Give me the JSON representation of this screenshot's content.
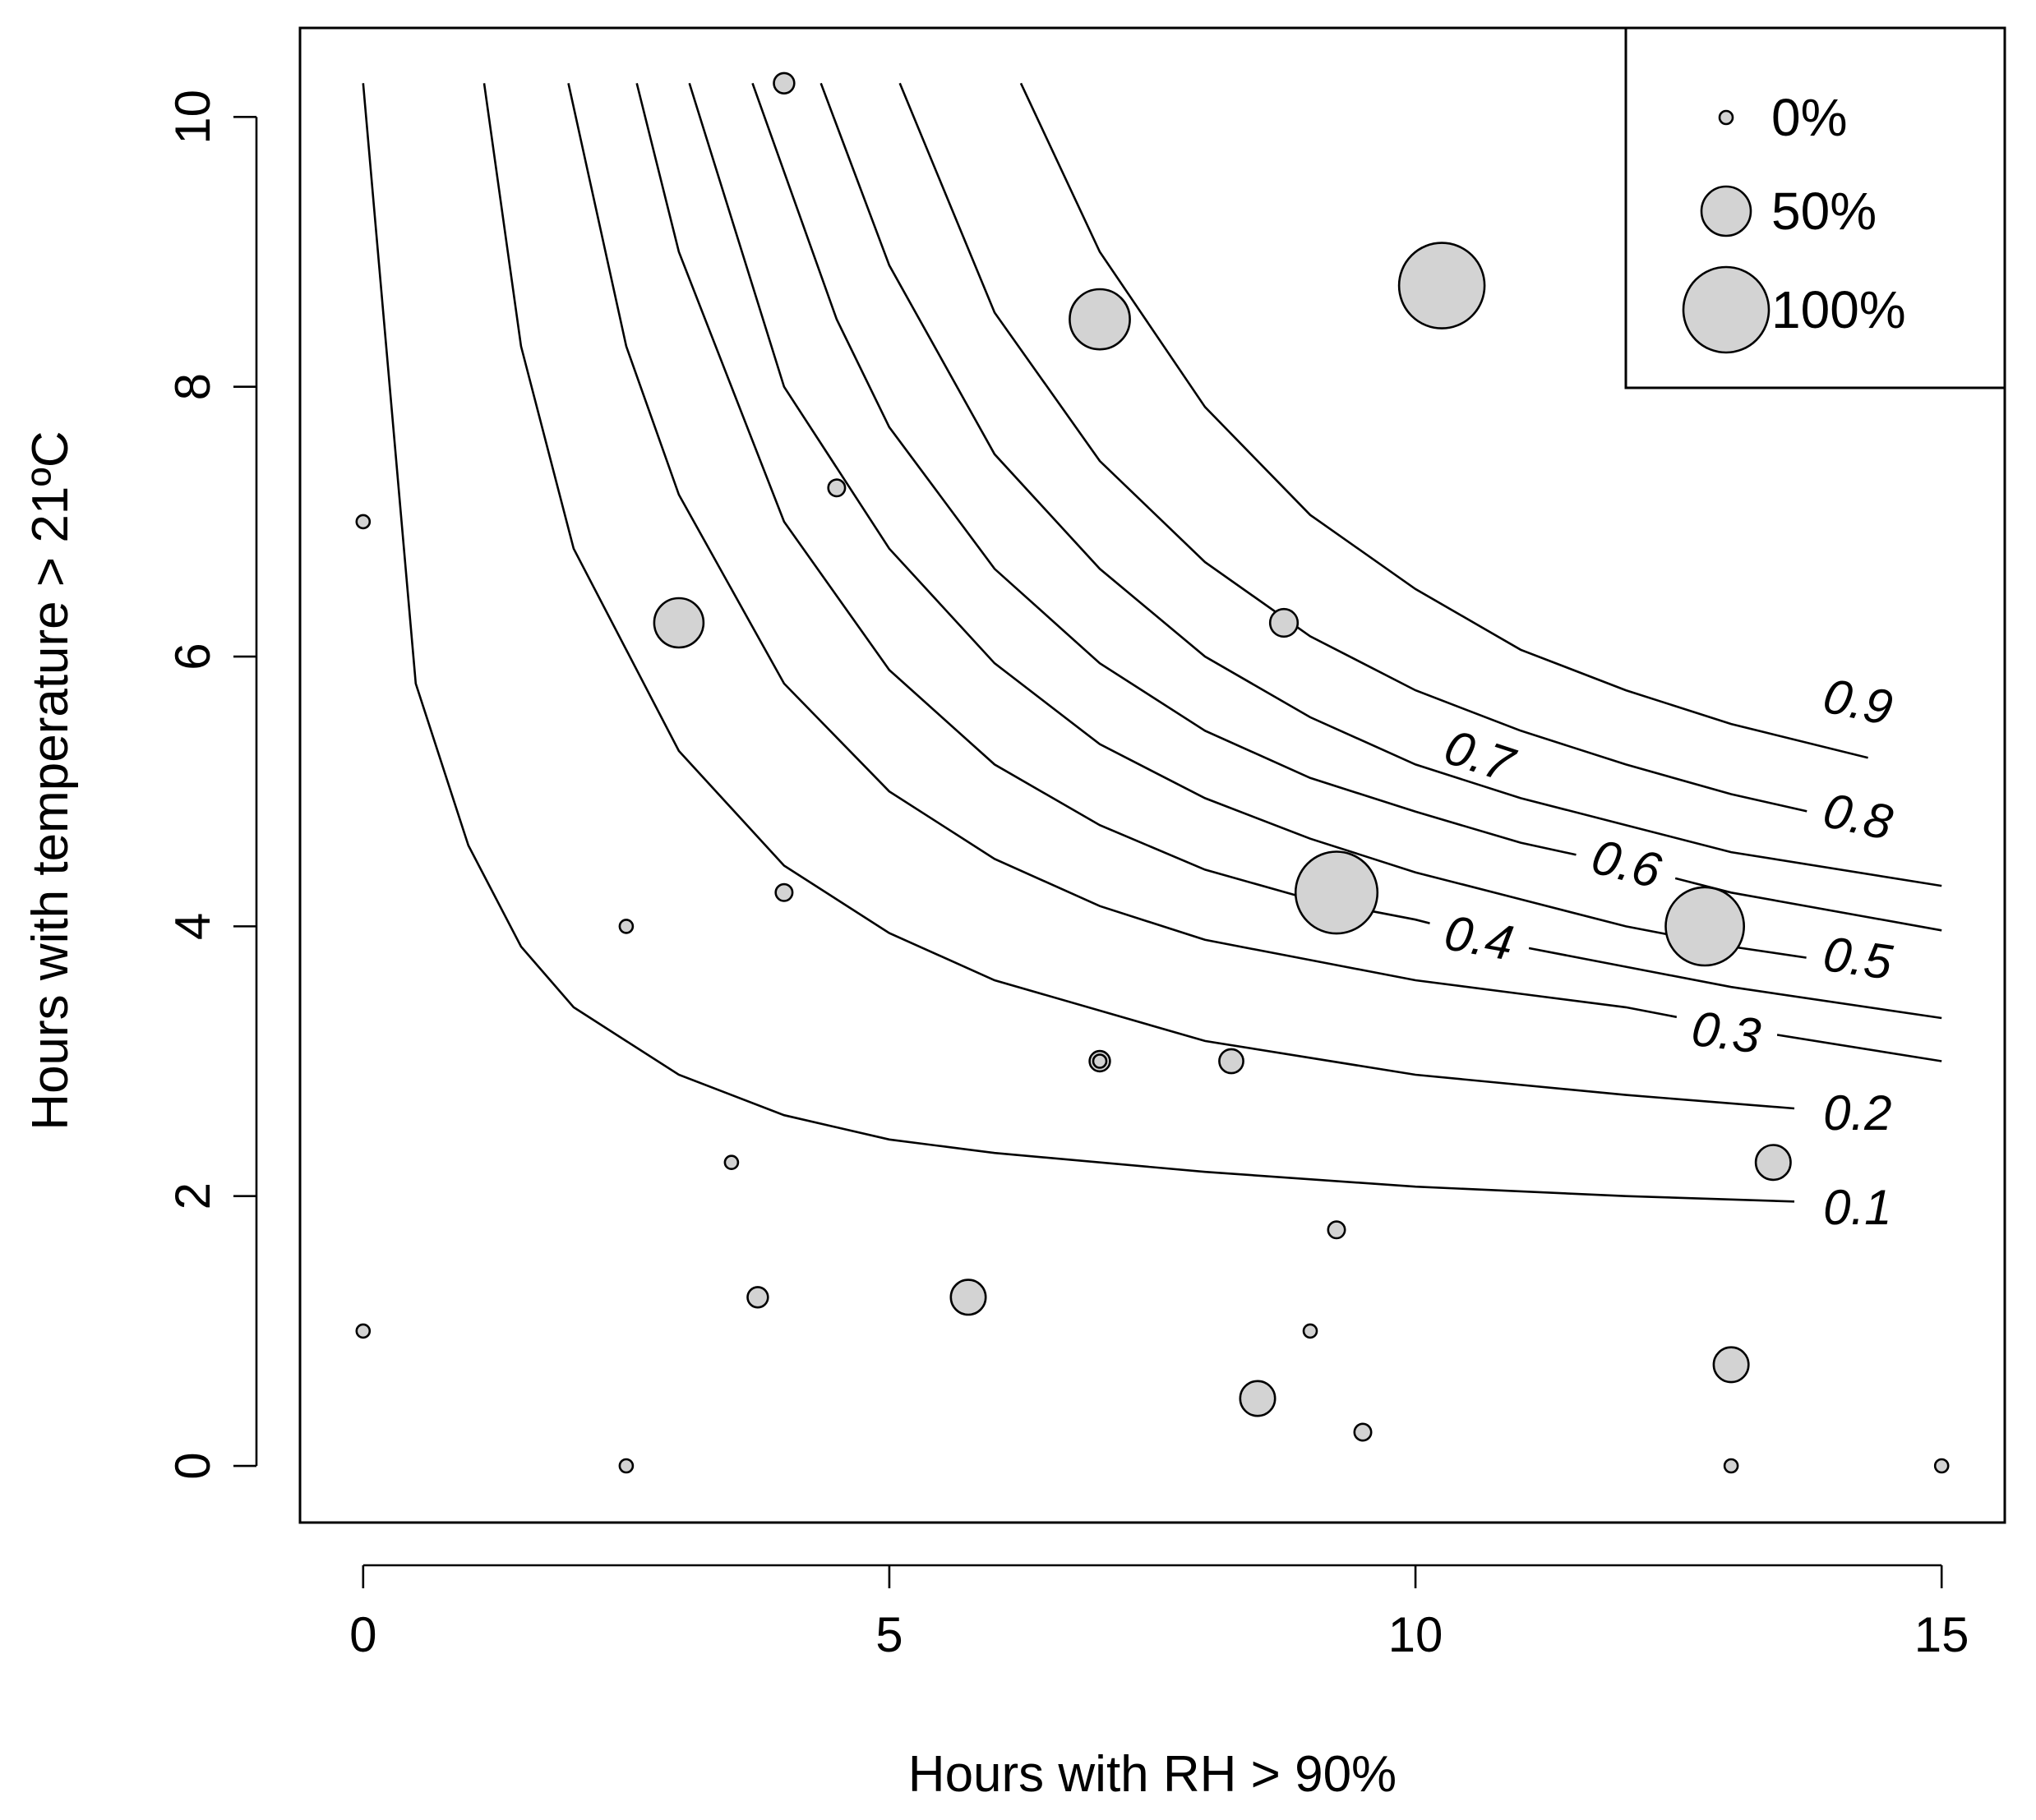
{
  "chart_data": {
    "type": "scatter",
    "xlabel": "Hours with RH > 90%",
    "ylabel": "Hours with temperature > 21ºC",
    "xlim": [
      -0.6,
      15.6
    ],
    "ylim": [
      -0.42,
      10.66
    ],
    "x_ticks": [
      0,
      5,
      10,
      15
    ],
    "y_ticks": [
      0,
      2,
      4,
      6,
      8,
      10
    ],
    "grid": false,
    "point_fill": "#d3d3d3",
    "point_stroke": "#000000",
    "size_variable": "percent",
    "points": [
      {
        "x": 0.0,
        "y": 7.0,
        "size": 0
      },
      {
        "x": 0.0,
        "y": 1.0,
        "size": 0
      },
      {
        "x": 2.5,
        "y": 4.0,
        "size": 0
      },
      {
        "x": 2.5,
        "y": 0.0,
        "size": 0
      },
      {
        "x": 3.0,
        "y": 6.25,
        "size": 50
      },
      {
        "x": 3.5,
        "y": 2.25,
        "size": 0
      },
      {
        "x": 3.75,
        "y": 1.25,
        "size": 10
      },
      {
        "x": 4.0,
        "y": 10.25,
        "size": 10
      },
      {
        "x": 4.0,
        "y": 4.25,
        "size": 5
      },
      {
        "x": 4.5,
        "y": 7.25,
        "size": 5
      },
      {
        "x": 5.75,
        "y": 1.25,
        "size": 30
      },
      {
        "x": 7.0,
        "y": 8.5,
        "size": 65
      },
      {
        "x": 7.0,
        "y": 3.0,
        "size": 10
      },
      {
        "x": 7.0,
        "y": 3.0,
        "size": 0
      },
      {
        "x": 8.25,
        "y": 3.0,
        "size": 15
      },
      {
        "x": 8.5,
        "y": 0.5,
        "size": 30
      },
      {
        "x": 8.75,
        "y": 6.25,
        "size": 20
      },
      {
        "x": 9.0,
        "y": 1.0,
        "size": 0
      },
      {
        "x": 9.25,
        "y": 4.25,
        "size": 95
      },
      {
        "x": 9.25,
        "y": 1.75,
        "size": 5
      },
      {
        "x": 9.5,
        "y": 0.25,
        "size": 5
      },
      {
        "x": 10.25,
        "y": 8.75,
        "size": 100
      },
      {
        "x": 12.75,
        "y": 4.0,
        "size": 90
      },
      {
        "x": 13.0,
        "y": 0.75,
        "size": 30
      },
      {
        "x": 13.0,
        "y": 0.0,
        "size": 0
      },
      {
        "x": 13.4,
        "y": 2.25,
        "size": 30
      },
      {
        "x": 15.0,
        "y": 0.0,
        "size": 0
      }
    ],
    "legend": {
      "placement": "top-right",
      "entries": [
        {
          "label": "0%",
          "size": 0
        },
        {
          "label": "50%",
          "size": 50
        },
        {
          "label": "100%",
          "size": 100
        }
      ]
    },
    "contours": [
      {
        "level": 0.1,
        "label": "0.1",
        "points": [
          [
            0,
            10.25
          ],
          [
            0.5,
            5.8
          ],
          [
            1,
            4.6
          ],
          [
            1.5,
            3.85
          ],
          [
            2,
            3.4
          ],
          [
            3,
            2.9
          ],
          [
            4,
            2.6
          ],
          [
            5,
            2.42
          ],
          [
            6,
            2.32
          ],
          [
            8,
            2.18
          ],
          [
            10,
            2.07
          ],
          [
            12,
            2.0
          ],
          [
            13.6,
            1.96
          ]
        ]
      },
      {
        "level": 0.2,
        "label": "0.2",
        "points": [
          [
            1.15,
            10.25
          ],
          [
            1.5,
            8.3
          ],
          [
            2,
            6.8
          ],
          [
            3,
            5.3
          ],
          [
            4,
            4.45
          ],
          [
            5,
            3.95
          ],
          [
            6,
            3.6
          ],
          [
            8,
            3.15
          ],
          [
            10,
            2.9
          ],
          [
            12,
            2.75
          ],
          [
            13.6,
            2.65
          ]
        ]
      },
      {
        "level": 0.3,
        "label": "0.3",
        "points": [
          [
            1.95,
            10.25
          ],
          [
            2.5,
            8.3
          ],
          [
            3,
            7.2
          ],
          [
            4,
            5.8
          ],
          [
            5,
            5.0
          ],
          [
            6,
            4.5
          ],
          [
            7,
            4.15
          ],
          [
            8,
            3.9
          ],
          [
            9,
            3.75
          ],
          [
            10,
            3.6
          ],
          [
            11,
            3.5
          ],
          [
            12,
            3.4
          ],
          [
            13,
            3.25
          ],
          [
            15,
            3.0
          ]
        ]
      },
      {
        "level": 0.4,
        "label": "0.4",
        "points": [
          [
            2.6,
            10.25
          ],
          [
            3,
            9.0
          ],
          [
            4,
            7.0
          ],
          [
            5,
            5.9
          ],
          [
            6,
            5.2
          ],
          [
            7,
            4.75
          ],
          [
            8,
            4.42
          ],
          [
            9,
            4.2
          ],
          [
            10,
            4.05
          ],
          [
            11,
            3.85
          ],
          [
            12,
            3.7
          ],
          [
            13,
            3.55
          ],
          [
            15,
            3.32
          ]
        ]
      },
      {
        "level": 0.5,
        "label": "0.5",
        "points": [
          [
            3.1,
            10.25
          ],
          [
            4,
            8.0
          ],
          [
            5,
            6.8
          ],
          [
            6,
            5.95
          ],
          [
            7,
            5.35
          ],
          [
            8,
            4.95
          ],
          [
            9,
            4.65
          ],
          [
            10,
            4.4
          ],
          [
            11,
            4.2
          ],
          [
            12,
            4.0
          ],
          [
            13,
            3.85
          ],
          [
            14.3,
            3.7
          ]
        ]
      },
      {
        "level": 0.6,
        "label": "0.6",
        "points": [
          [
            3.7,
            10.25
          ],
          [
            4.5,
            8.5
          ],
          [
            5,
            7.7
          ],
          [
            6,
            6.65
          ],
          [
            7,
            5.95
          ],
          [
            8,
            5.45
          ],
          [
            9,
            5.1
          ],
          [
            10,
            4.85
          ],
          [
            11,
            4.62
          ],
          [
            12,
            4.45
          ],
          [
            13,
            4.25
          ],
          [
            15,
            3.97
          ]
        ]
      },
      {
        "level": 0.7,
        "label": "0.7",
        "points": [
          [
            4.35,
            10.25
          ],
          [
            5,
            8.9
          ],
          [
            6,
            7.5
          ],
          [
            7,
            6.65
          ],
          [
            8,
            6.0
          ],
          [
            9,
            5.55
          ],
          [
            10,
            5.2
          ],
          [
            11,
            4.95
          ],
          [
            12,
            4.75
          ],
          [
            13,
            4.55
          ],
          [
            15,
            4.3
          ]
        ]
      },
      {
        "level": 0.8,
        "label": "0.8",
        "points": [
          [
            5.1,
            10.25
          ],
          [
            6,
            8.55
          ],
          [
            7,
            7.45
          ],
          [
            8,
            6.7
          ],
          [
            9,
            6.15
          ],
          [
            10,
            5.75
          ],
          [
            11,
            5.45
          ],
          [
            12,
            5.2
          ],
          [
            13,
            4.98
          ],
          [
            14.3,
            4.75
          ]
        ]
      },
      {
        "level": 0.9,
        "label": "0.9",
        "points": [
          [
            6.25,
            10.25
          ],
          [
            7,
            9.0
          ],
          [
            8,
            7.85
          ],
          [
            9,
            7.05
          ],
          [
            10,
            6.5
          ],
          [
            11,
            6.05
          ],
          [
            12,
            5.75
          ],
          [
            13,
            5.5
          ],
          [
            14.3,
            5.25
          ]
        ]
      }
    ],
    "contour_labels": [
      {
        "text": "0.1",
        "x": 14.2,
        "y": 1.9,
        "angle": 0
      },
      {
        "text": "0.2",
        "x": 14.2,
        "y": 2.6,
        "angle": 0
      },
      {
        "text": "0.3",
        "x": 12.95,
        "y": 3.2,
        "angle": 7
      },
      {
        "text": "0.4",
        "x": 10.6,
        "y": 3.9,
        "angle": 10
      },
      {
        "text": "0.5",
        "x": 14.2,
        "y": 3.75,
        "angle": 8
      },
      {
        "text": "0.6",
        "x": 12.0,
        "y": 4.45,
        "angle": 14
      },
      {
        "text": "0.7",
        "x": 10.6,
        "y": 5.25,
        "angle": 18
      },
      {
        "text": "0.8",
        "x": 14.2,
        "y": 4.8,
        "angle": 12
      },
      {
        "text": "0.9",
        "x": 14.2,
        "y": 5.65,
        "angle": 12
      }
    ]
  }
}
